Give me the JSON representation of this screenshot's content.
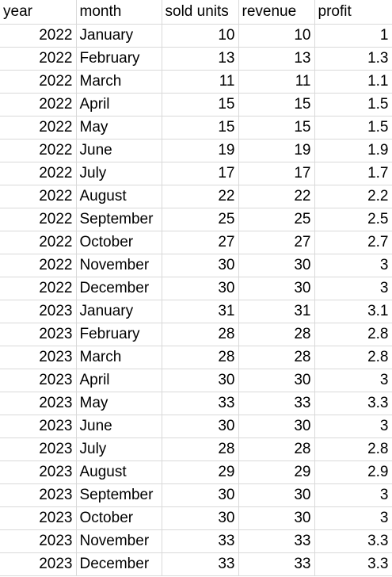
{
  "header": {
    "year": "year",
    "month": "month",
    "sold_units": "sold units",
    "revenue": "revenue",
    "profit": "profit"
  },
  "rows": [
    {
      "year": "2022",
      "month": "January",
      "sold_units": "10",
      "revenue": "10",
      "profit": "1"
    },
    {
      "year": "2022",
      "month": "February",
      "sold_units": "13",
      "revenue": "13",
      "profit": "1.3"
    },
    {
      "year": "2022",
      "month": "March",
      "sold_units": "11",
      "revenue": "11",
      "profit": "1.1"
    },
    {
      "year": "2022",
      "month": "April",
      "sold_units": "15",
      "revenue": "15",
      "profit": "1.5"
    },
    {
      "year": "2022",
      "month": "May",
      "sold_units": "15",
      "revenue": "15",
      "profit": "1.5"
    },
    {
      "year": "2022",
      "month": "June",
      "sold_units": "19",
      "revenue": "19",
      "profit": "1.9"
    },
    {
      "year": "2022",
      "month": "July",
      "sold_units": "17",
      "revenue": "17",
      "profit": "1.7"
    },
    {
      "year": "2022",
      "month": "August",
      "sold_units": "22",
      "revenue": "22",
      "profit": "2.2"
    },
    {
      "year": "2022",
      "month": "September",
      "sold_units": "25",
      "revenue": "25",
      "profit": "2.5"
    },
    {
      "year": "2022",
      "month": "October",
      "sold_units": "27",
      "revenue": "27",
      "profit": "2.7"
    },
    {
      "year": "2022",
      "month": "November",
      "sold_units": "30",
      "revenue": "30",
      "profit": "3"
    },
    {
      "year": "2022",
      "month": "December",
      "sold_units": "30",
      "revenue": "30",
      "profit": "3"
    },
    {
      "year": "2023",
      "month": "January",
      "sold_units": "31",
      "revenue": "31",
      "profit": "3.1"
    },
    {
      "year": "2023",
      "month": "February",
      "sold_units": "28",
      "revenue": "28",
      "profit": "2.8"
    },
    {
      "year": "2023",
      "month": "March",
      "sold_units": "28",
      "revenue": "28",
      "profit": "2.8"
    },
    {
      "year": "2023",
      "month": "April",
      "sold_units": "30",
      "revenue": "30",
      "profit": "3"
    },
    {
      "year": "2023",
      "month": "May",
      "sold_units": "33",
      "revenue": "33",
      "profit": "3.3"
    },
    {
      "year": "2023",
      "month": "June",
      "sold_units": "30",
      "revenue": "30",
      "profit": "3"
    },
    {
      "year": "2023",
      "month": "July",
      "sold_units": "28",
      "revenue": "28",
      "profit": "2.8"
    },
    {
      "year": "2023",
      "month": "August",
      "sold_units": "29",
      "revenue": "29",
      "profit": "2.9"
    },
    {
      "year": "2023",
      "month": "September",
      "sold_units": "30",
      "revenue": "30",
      "profit": "3"
    },
    {
      "year": "2023",
      "month": "October",
      "sold_units": "30",
      "revenue": "30",
      "profit": "3"
    },
    {
      "year": "2023",
      "month": "November",
      "sold_units": "33",
      "revenue": "33",
      "profit": "3.3"
    },
    {
      "year": "2023",
      "month": "December",
      "sold_units": "33",
      "revenue": "33",
      "profit": "3.3"
    }
  ]
}
